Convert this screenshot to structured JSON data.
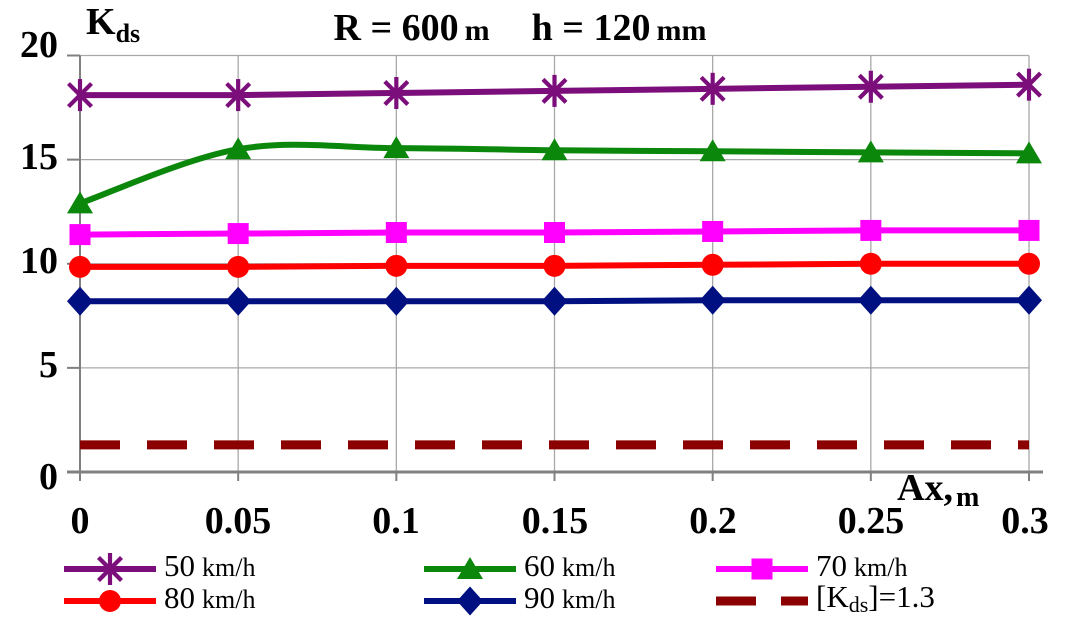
{
  "title": {
    "r_text": "R = 600",
    "r_unit": "m",
    "h_text": "h = 120",
    "h_unit": "mm"
  },
  "y_axis_label": {
    "main": "K",
    "sub": "ds"
  },
  "x_axis_label": {
    "main": "Ax,",
    "sub": "m"
  },
  "chart_data": {
    "type": "line",
    "title": "R = 600 m  h = 120 mm",
    "xlabel": "Ax, m",
    "ylabel": "Kds",
    "x": [
      0,
      0.05,
      0.1,
      0.15,
      0.2,
      0.25,
      0.3
    ],
    "xticks": [
      "0",
      "0.05",
      "0.1",
      "0.15",
      "0.2",
      "0.25",
      "0.3"
    ],
    "yticks": [
      "0",
      "5",
      "10",
      "15",
      "20"
    ],
    "xlim": [
      0,
      0.3
    ],
    "ylim": [
      0,
      20
    ],
    "grid": true,
    "legend_position": "bottom",
    "series": [
      {
        "id": "50-kmh",
        "name": "50 km/h",
        "color": "#7B0E7B",
        "marker": "asterisk",
        "smooth": false,
        "values": [
          18.1,
          18.1,
          18.2,
          18.3,
          18.4,
          18.5,
          18.6
        ]
      },
      {
        "id": "60-kmh",
        "name": "60 km/h",
        "color": "#0B870B",
        "marker": "triangle",
        "smooth": true,
        "values": [
          12.9,
          15.5,
          15.55,
          15.45,
          15.4,
          15.35,
          15.3
        ]
      },
      {
        "id": "70-kmh",
        "name": "70 km/h",
        "color": "#FF00FF",
        "marker": "square",
        "smooth": false,
        "values": [
          11.4,
          11.45,
          11.5,
          11.5,
          11.55,
          11.6,
          11.6
        ]
      },
      {
        "id": "80-kmh",
        "name": "80 km/h",
        "color": "#FF0000",
        "marker": "circle",
        "smooth": false,
        "values": [
          9.85,
          9.85,
          9.9,
          9.9,
          9.95,
          10.0,
          10.0
        ]
      },
      {
        "id": "90-kmh",
        "name": "90 km/h",
        "color": "#001080",
        "marker": "diamond",
        "smooth": false,
        "values": [
          8.2,
          8.2,
          8.2,
          8.2,
          8.25,
          8.25,
          8.25
        ]
      },
      {
        "id": "kds-limit",
        "name": "[Kds]=1.3",
        "color": "#8B0000",
        "marker": "none",
        "style": "dashed",
        "values": [
          1.3,
          1.3,
          1.3,
          1.3,
          1.3,
          1.3,
          1.3
        ]
      }
    ]
  },
  "legend": {
    "items": [
      {
        "value": "50",
        "unit": "km/h"
      },
      {
        "value": "60",
        "unit": "km/h"
      },
      {
        "value": "70",
        "unit": "km/h"
      },
      {
        "value": "80",
        "unit": "km/h"
      },
      {
        "value": "90",
        "unit": "km/h"
      },
      {
        "open": "[K",
        "sub": "ds",
        "close": "]=1.3"
      }
    ]
  }
}
